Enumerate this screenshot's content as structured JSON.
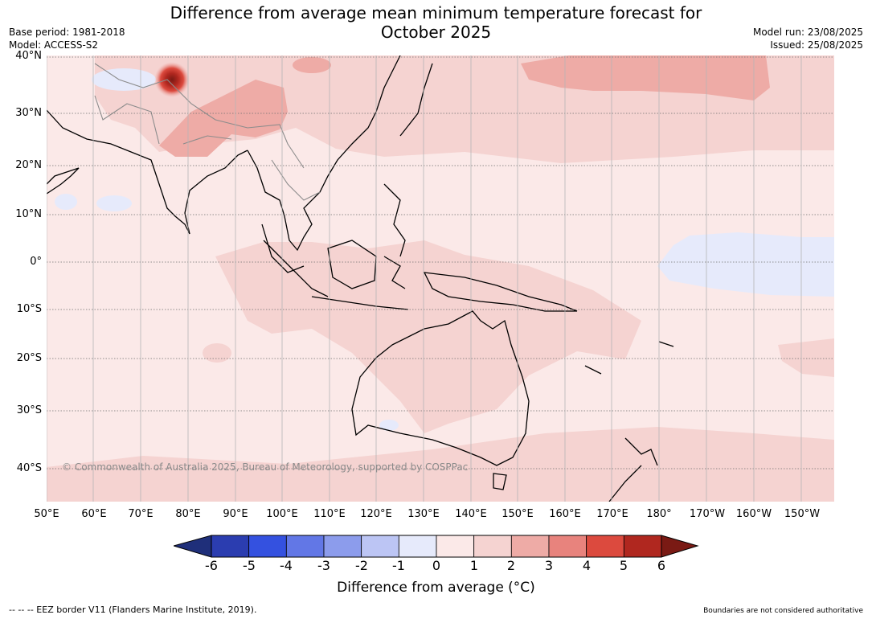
{
  "title_line1": "Difference from average mean minimum temperature forecast for",
  "title_line2": "October 2025",
  "base_period": "Base period: 1981-2018",
  "model": "Model: ACCESS-S2",
  "model_run": "Model run: 23/08/2025",
  "issued": "Issued: 25/08/2025",
  "lat_labels": [
    "40°N",
    "30°N",
    "20°N",
    "10°N",
    "0°",
    "10°S",
    "20°S",
    "30°S",
    "40°S"
  ],
  "lon_labels": [
    "50°E",
    "60°E",
    "70°E",
    "80°E",
    "90°E",
    "100°E",
    "110°E",
    "120°E",
    "130°E",
    "140°E",
    "150°E",
    "160°E",
    "170°E",
    "180°",
    "170°W",
    "160°W",
    "150°W"
  ],
  "copyright": "© Commonwealth of Australia 2025, Bureau of Meteorology, supported by COSPPac",
  "colorbar": {
    "ticks": [
      "-6",
      "-5",
      "-4",
      "-3",
      "-2",
      "-1",
      "0",
      "1",
      "2",
      "3",
      "4",
      "5",
      "6"
    ],
    "label": "Difference from average (°C)",
    "colors": [
      "#1f2f7a",
      "#2b3db0",
      "#3451e0",
      "#6277e6",
      "#8c9cec",
      "#bcc5f4",
      "#e6eafb",
      "#fbe9e8",
      "#f5d3d1",
      "#eeaba6",
      "#e8837d",
      "#dc4a3e",
      "#b0271f",
      "#7a1a14"
    ]
  },
  "footer_left": "--  --  -- EEZ border V11 (Flanders Marine Institute, 2019).",
  "footer_right": "Boundaries are not considered authoritative"
}
